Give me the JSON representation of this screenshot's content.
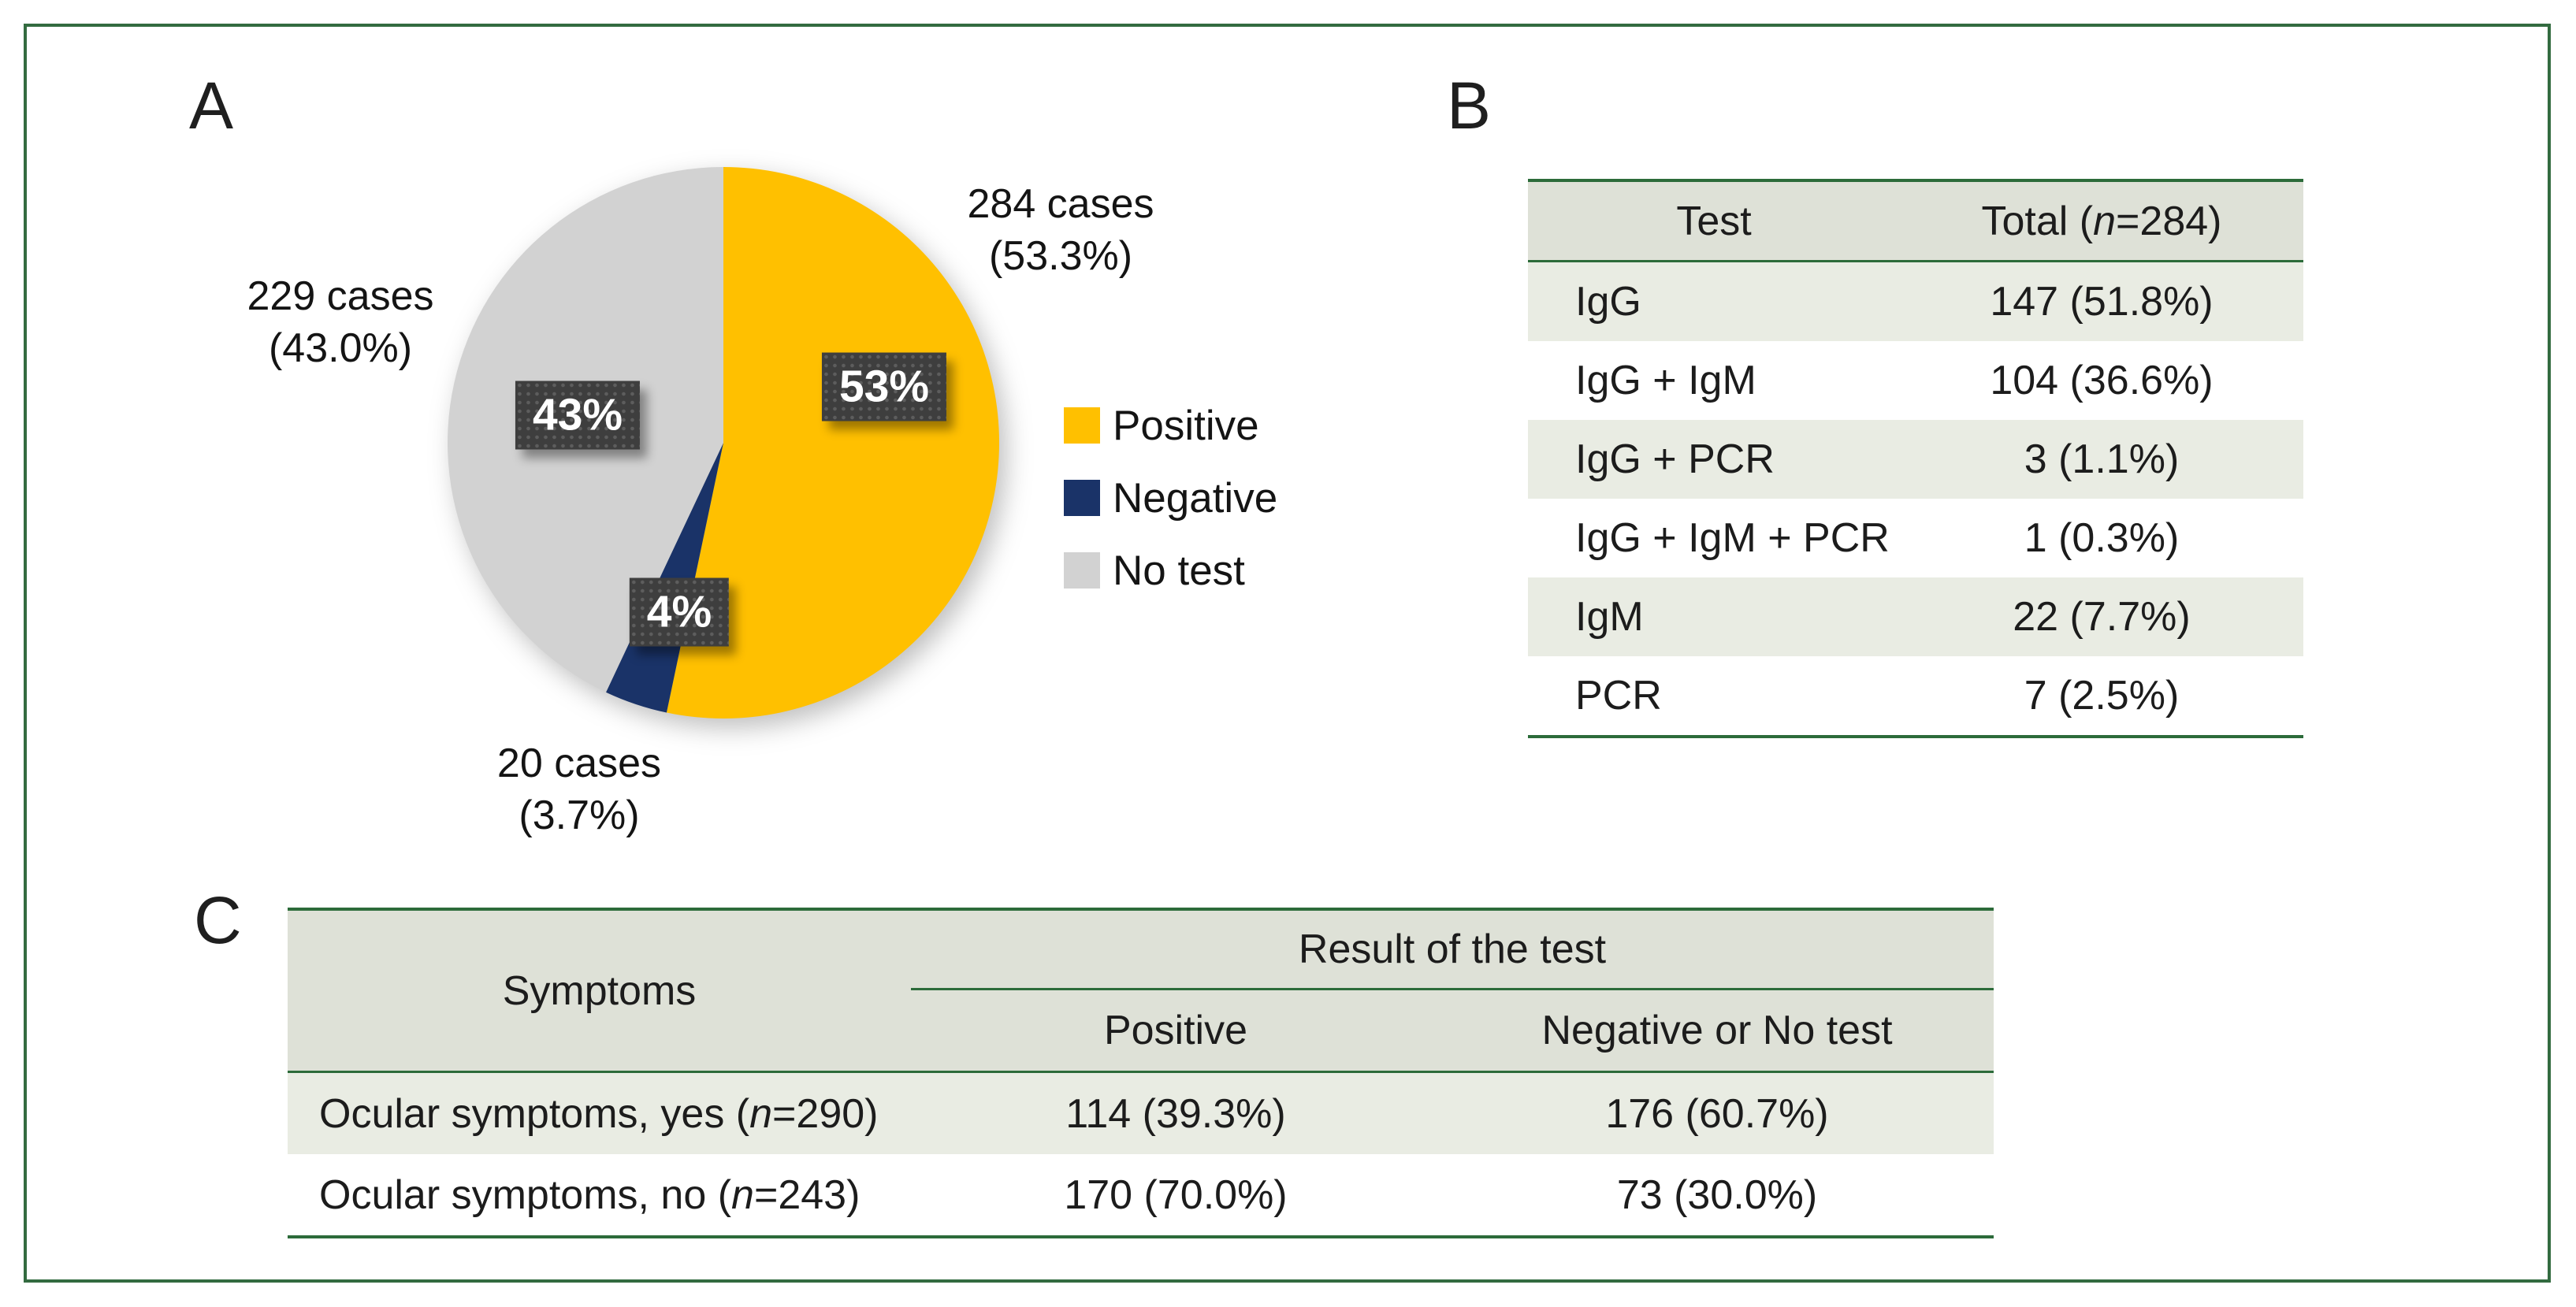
{
  "figure": {
    "border_color": "#336B40",
    "rule_color": "#2C6B3A",
    "header_fill": "#DEE1D7",
    "stripe_fill": "#E9ECE3",
    "panel_labels": {
      "a": "A",
      "b": "B",
      "c": "C"
    }
  },
  "chart_data": {
    "type": "pie",
    "start_angle_deg": 0,
    "direction": "clockwise",
    "legend_position": "right",
    "slices": [
      {
        "name": "Positive",
        "cases": 284,
        "pct": 53.3,
        "color": "#FFC000",
        "callout_line1": "284 cases",
        "callout_line2": "(53.3%)",
        "box_label": "53%"
      },
      {
        "name": "Negative",
        "cases": 20,
        "pct": 3.7,
        "color": "#1A3368",
        "callout_line1": "20 cases",
        "callout_line2": "(3.7%)",
        "box_label": "4%"
      },
      {
        "name": "No test",
        "cases": 229,
        "pct": 43.0,
        "color": "#D2D2D2",
        "callout_line1": "229 cases",
        "callout_line2": "(43.0%)",
        "box_label": "43%"
      }
    ]
  },
  "panelB_table": {
    "header": {
      "col_test": "Test",
      "col_total_prefix": "Total (",
      "col_total_n": "n",
      "col_total_suffix": "=284)"
    },
    "rows": [
      {
        "test": "IgG",
        "total": "147 (51.8%)"
      },
      {
        "test": "IgG + IgM",
        "total": "104 (36.6%)"
      },
      {
        "test": "IgG + PCR",
        "total": "3 (1.1%)"
      },
      {
        "test": "IgG + IgM + PCR",
        "total": "1 (0.3%)"
      },
      {
        "test": "IgM",
        "total": "22 (7.7%)"
      },
      {
        "test": "PCR",
        "total": "7 (2.5%)"
      }
    ]
  },
  "panelC_table": {
    "header": {
      "symptoms": "Symptoms",
      "result_group": "Result of the test",
      "positive": "Positive",
      "negative": "Negative or No test"
    },
    "rows": [
      {
        "sym_prefix": "Ocular symptoms, yes (",
        "sym_n": "n",
        "sym_suffix": "=290)",
        "positive": "114 (39.3%)",
        "negative": "176 (60.7%)"
      },
      {
        "sym_prefix": "Ocular symptoms, no (",
        "sym_n": "n",
        "sym_suffix": "=243)",
        "positive": "170 (70.0%)",
        "negative": "73 (30.0%)"
      }
    ]
  }
}
